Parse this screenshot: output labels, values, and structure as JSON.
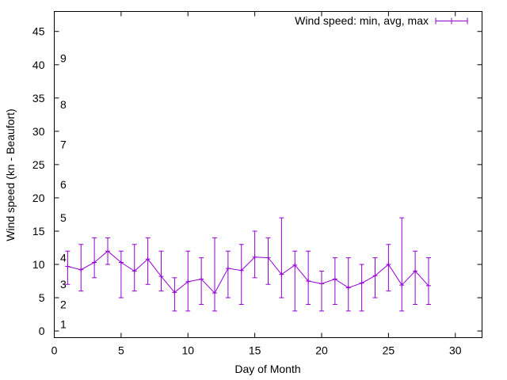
{
  "chart_data": {
    "type": "line",
    "title": "",
    "xlabel": "Day of Month",
    "ylabel": "Wind speed (kn - Beaufort)",
    "xlim": [
      0,
      32
    ],
    "ylim": [
      -1,
      48
    ],
    "xticks": [
      0,
      5,
      10,
      15,
      20,
      25,
      30
    ],
    "yticks": [
      0,
      5,
      10,
      15,
      20,
      25,
      30,
      35,
      40,
      45
    ],
    "grid": false,
    "legend_position": "top-right",
    "colors": {
      "series": "#9400d3",
      "axis": "#000000"
    },
    "beaufort_labels": [
      {
        "label": "1",
        "y": 1
      },
      {
        "label": "2",
        "y": 4
      },
      {
        "label": "3",
        "y": 7
      },
      {
        "label": "4",
        "y": 11
      },
      {
        "label": "5",
        "y": 17
      },
      {
        "label": "6",
        "y": 22
      },
      {
        "label": "7",
        "y": 28
      },
      {
        "label": "8",
        "y": 34
      },
      {
        "label": "9",
        "y": 41
      }
    ],
    "series": [
      {
        "name": "Wind speed: min, avg, max",
        "x": [
          1,
          2,
          3,
          4,
          5,
          6,
          7,
          8,
          9,
          10,
          11,
          12,
          13,
          14,
          15,
          16,
          17,
          18,
          19,
          20,
          21,
          22,
          23,
          24,
          25,
          26,
          27,
          28
        ],
        "avg": [
          9.7,
          9.2,
          10.3,
          12,
          10.3,
          9.0,
          10.8,
          8.2,
          5.8,
          7.4,
          7.8,
          5.7,
          9.4,
          9.1,
          11.1,
          11.0,
          8.5,
          9.9,
          7.5,
          7.1,
          7.8,
          6.5,
          7.2,
          8.3,
          10.0,
          6.9,
          9.0,
          6.8
        ],
        "min": [
          7,
          6,
          8,
          10,
          5,
          6,
          7,
          6,
          3,
          3,
          4,
          3,
          5,
          4,
          8,
          7,
          5,
          3,
          4,
          3,
          4,
          3,
          3,
          5,
          6,
          3,
          4,
          4
        ],
        "max": [
          12,
          13,
          14,
          14,
          12,
          13,
          14,
          12,
          8,
          12,
          11,
          14,
          12,
          13,
          15,
          14,
          17,
          12,
          12,
          9,
          11,
          11,
          10,
          11,
          13,
          17,
          12,
          11
        ]
      }
    ]
  }
}
